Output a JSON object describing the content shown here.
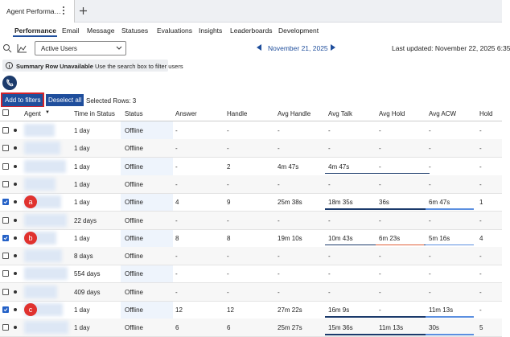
{
  "tab": {
    "title": "Agent Performa…"
  },
  "nav": [
    "Performance",
    "Email",
    "Message",
    "Statuses",
    "Evaluations",
    "Insights",
    "Leaderboards",
    "Development"
  ],
  "toolbar": {
    "filter": "Active Users",
    "date": "November 21, 2025",
    "updated": "Last updated: November 22, 2025 6:35"
  },
  "info": {
    "bold": "Summary Row Unavailable",
    "text": "Use the search box to filter users"
  },
  "buttons": {
    "add": "Add to filters",
    "deselect": "Deselect all",
    "selected": "Selected Rows: 3"
  },
  "table": {
    "headers": [
      "Agent",
      "Time in Status",
      "Status",
      "Answer",
      "Handle",
      "Avg Handle",
      "Avg Talk",
      "Avg Hold",
      "Avg ACW",
      "Hold"
    ],
    "rows": [
      {
        "checked": false,
        "cells": [
          "1 day",
          "Offline",
          "-",
          "-",
          "-",
          "-",
          "-",
          "-",
          "-"
        ]
      },
      {
        "checked": false,
        "cells": [
          "1 day",
          "Offline",
          "-",
          "-",
          "-",
          "-",
          "-",
          "-",
          "-"
        ]
      },
      {
        "checked": false,
        "cells": [
          "1 day",
          "Offline",
          "-",
          "2",
          "4m 47s",
          "4m 47s",
          "-",
          "-",
          "-"
        ]
      },
      {
        "checked": false,
        "cells": [
          "1 day",
          "Offline",
          "-",
          "-",
          "-",
          "-",
          "-",
          "-",
          "-"
        ]
      },
      {
        "checked": true,
        "mark": "a",
        "cells": [
          "1 day",
          "Offline",
          "4",
          "9",
          "25m 38s",
          "18m 35s",
          "36s",
          "6m 47s",
          "1"
        ]
      },
      {
        "checked": false,
        "cells": [
          "22 days",
          "Offline",
          "-",
          "-",
          "-",
          "-",
          "-",
          "-",
          "-"
        ]
      },
      {
        "checked": true,
        "mark": "b",
        "cells": [
          "1 day",
          "Offline",
          "8",
          "8",
          "19m 10s",
          "10m 43s",
          "6m 23s",
          "5m 16s",
          "4"
        ]
      },
      {
        "checked": false,
        "cells": [
          "8 days",
          "Offline",
          "-",
          "-",
          "-",
          "-",
          "-",
          "-",
          "-"
        ]
      },
      {
        "checked": false,
        "cells": [
          "554 days",
          "Offline",
          "-",
          "-",
          "-",
          "-",
          "-",
          "-",
          "-"
        ]
      },
      {
        "checked": false,
        "cells": [
          "409 days",
          "Offline",
          "-",
          "-",
          "-",
          "-",
          "-",
          "-",
          "-"
        ]
      },
      {
        "checked": true,
        "mark": "c",
        "cells": [
          "1 day",
          "Offline",
          "12",
          "12",
          "27m 22s",
          "16m 9s",
          "-",
          "11m 13s",
          "-"
        ]
      },
      {
        "checked": false,
        "cells": [
          "1 day",
          "Offline",
          "6",
          "6",
          "25m 27s",
          "15m 36s",
          "11m 13s",
          "30s",
          "5"
        ]
      }
    ]
  }
}
